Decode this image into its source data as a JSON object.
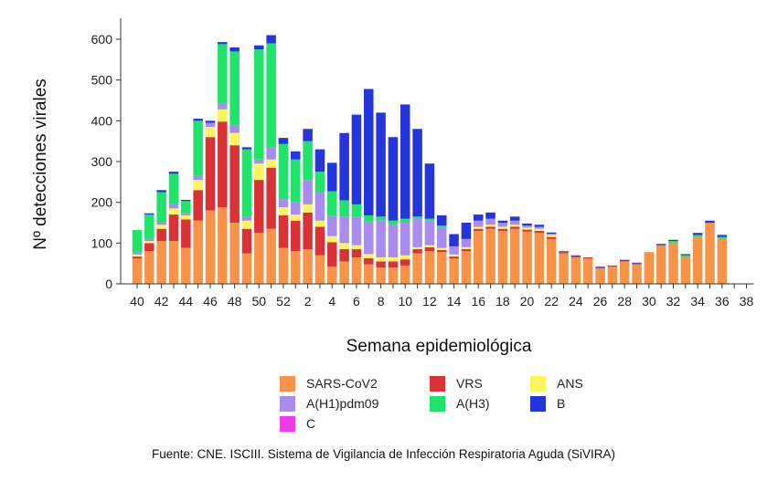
{
  "chart_data": {
    "type": "bar",
    "stacked": true,
    "title": "",
    "xlabel": "Semana epidemiológica",
    "ylabel": "Nº detecciones virales",
    "ylim": [
      0,
      640
    ],
    "yticks": [
      0,
      100,
      200,
      300,
      400,
      500,
      600
    ],
    "categories": [
      "40",
      "41",
      "42",
      "43",
      "44",
      "45",
      "46",
      "47",
      "48",
      "49",
      "50",
      "51",
      "52",
      "1",
      "2",
      "3",
      "4",
      "5",
      "6",
      "7",
      "8",
      "9",
      "10",
      "11",
      "12",
      "13",
      "14",
      "15",
      "16",
      "17",
      "18",
      "19",
      "20",
      "21",
      "22",
      "23",
      "24",
      "25",
      "26",
      "27",
      "28",
      "29",
      "30",
      "31",
      "32",
      "33",
      "34",
      "35",
      "36",
      "37",
      "38"
    ],
    "xticks_shown": [
      "40",
      "42",
      "44",
      "46",
      "48",
      "50",
      "52",
      "2",
      "4",
      "6",
      "8",
      "10",
      "12",
      "14",
      "16",
      "18",
      "20",
      "22",
      "24",
      "26",
      "28",
      "30",
      "32",
      "34",
      "36",
      "38"
    ],
    "series": [
      {
        "name": "SARS-CoV2",
        "color": "#F7944A",
        "values": [
          62,
          80,
          105,
          105,
          88,
          155,
          180,
          188,
          150,
          75,
          125,
          135,
          88,
          80,
          85,
          70,
          42,
          55,
          65,
          48,
          40,
          40,
          45,
          75,
          80,
          78,
          62,
          80,
          130,
          135,
          130,
          135,
          128,
          125,
          110,
          75,
          65,
          62,
          38,
          42,
          55,
          48,
          78,
          95,
          100,
          65,
          115,
          150,
          110,
          0,
          0
        ]
      },
      {
        "name": "VRS",
        "color": "#D93237",
        "values": [
          5,
          20,
          30,
          65,
          70,
          75,
          180,
          210,
          190,
          60,
          130,
          150,
          80,
          75,
          90,
          70,
          60,
          30,
          20,
          15,
          15,
          15,
          15,
          10,
          10,
          5,
          5,
          5,
          5,
          5,
          5,
          5,
          5,
          5,
          5,
          3,
          3,
          3,
          2,
          2,
          2,
          2,
          0,
          0,
          0,
          0,
          0,
          0,
          0,
          0,
          0
        ]
      },
      {
        "name": "ANS",
        "color": "#FAF55F",
        "values": [
          5,
          5,
          10,
          15,
          10,
          25,
          25,
          30,
          30,
          20,
          40,
          20,
          20,
          15,
          20,
          15,
          15,
          15,
          10,
          10,
          10,
          10,
          10,
          5,
          5,
          5,
          5,
          5,
          5,
          5,
          5,
          5,
          5,
          5,
          5,
          0,
          0,
          0,
          0,
          0,
          0,
          0,
          0,
          0,
          0,
          0,
          0,
          0,
          0,
          0,
          0
        ]
      },
      {
        "name": "A(H1)pdm09",
        "color": "#A88CF0",
        "values": [
          5,
          5,
          5,
          10,
          5,
          10,
          10,
          15,
          20,
          10,
          10,
          30,
          20,
          30,
          60,
          70,
          50,
          65,
          70,
          80,
          90,
          80,
          80,
          70,
          60,
          50,
          20,
          20,
          15,
          15,
          10,
          10,
          5,
          5,
          3,
          0,
          0,
          0,
          0,
          0,
          0,
          0,
          0,
          0,
          0,
          0,
          0,
          0,
          0,
          0,
          0
        ]
      },
      {
        "name": "A(H3)",
        "color": "#1FE36A",
        "values": [
          55,
          60,
          75,
          75,
          30,
          135,
          0,
          145,
          180,
          165,
          270,
          255,
          135,
          105,
          95,
          50,
          60,
          40,
          30,
          15,
          10,
          10,
          10,
          5,
          5,
          5,
          0,
          0,
          0,
          0,
          0,
          0,
          0,
          0,
          0,
          0,
          0,
          0,
          0,
          0,
          0,
          0,
          0,
          0,
          5,
          5,
          5,
          0,
          5,
          0,
          0
        ]
      },
      {
        "name": "B",
        "color": "#2436DB",
        "values": [
          0,
          3,
          5,
          5,
          3,
          5,
          5,
          5,
          10,
          5,
          10,
          20,
          15,
          20,
          30,
          55,
          70,
          165,
          220,
          310,
          255,
          205,
          280,
          215,
          135,
          25,
          30,
          40,
          15,
          15,
          5,
          10,
          5,
          5,
          3,
          2,
          2,
          0,
          2,
          1,
          2,
          2,
          0,
          3,
          3,
          3,
          5,
          5,
          5,
          0,
          0
        ]
      },
      {
        "name": "C",
        "color": "#F03CE8",
        "values": [
          0,
          0,
          0,
          0,
          0,
          0,
          0,
          0,
          0,
          0,
          0,
          0,
          0,
          0,
          0,
          0,
          0,
          0,
          0,
          0,
          0,
          0,
          0,
          0,
          0,
          0,
          0,
          0,
          0,
          0,
          0,
          0,
          0,
          0,
          0,
          0,
          0,
          0,
          0,
          0,
          0,
          0,
          0,
          0,
          0,
          0,
          0,
          0,
          0,
          0,
          0
        ]
      }
    ],
    "legend_order": [
      "SARS-CoV2",
      "VRS",
      "ANS",
      "A(H1)pdm09",
      "A(H3)",
      "B",
      "C"
    ],
    "grid": false,
    "legend_position": "bottom"
  },
  "caption": "Fuente: CNE. ISCIII. Sistema de Vigilancia de Infección Respiratoria Aguda (SiVIRA)"
}
